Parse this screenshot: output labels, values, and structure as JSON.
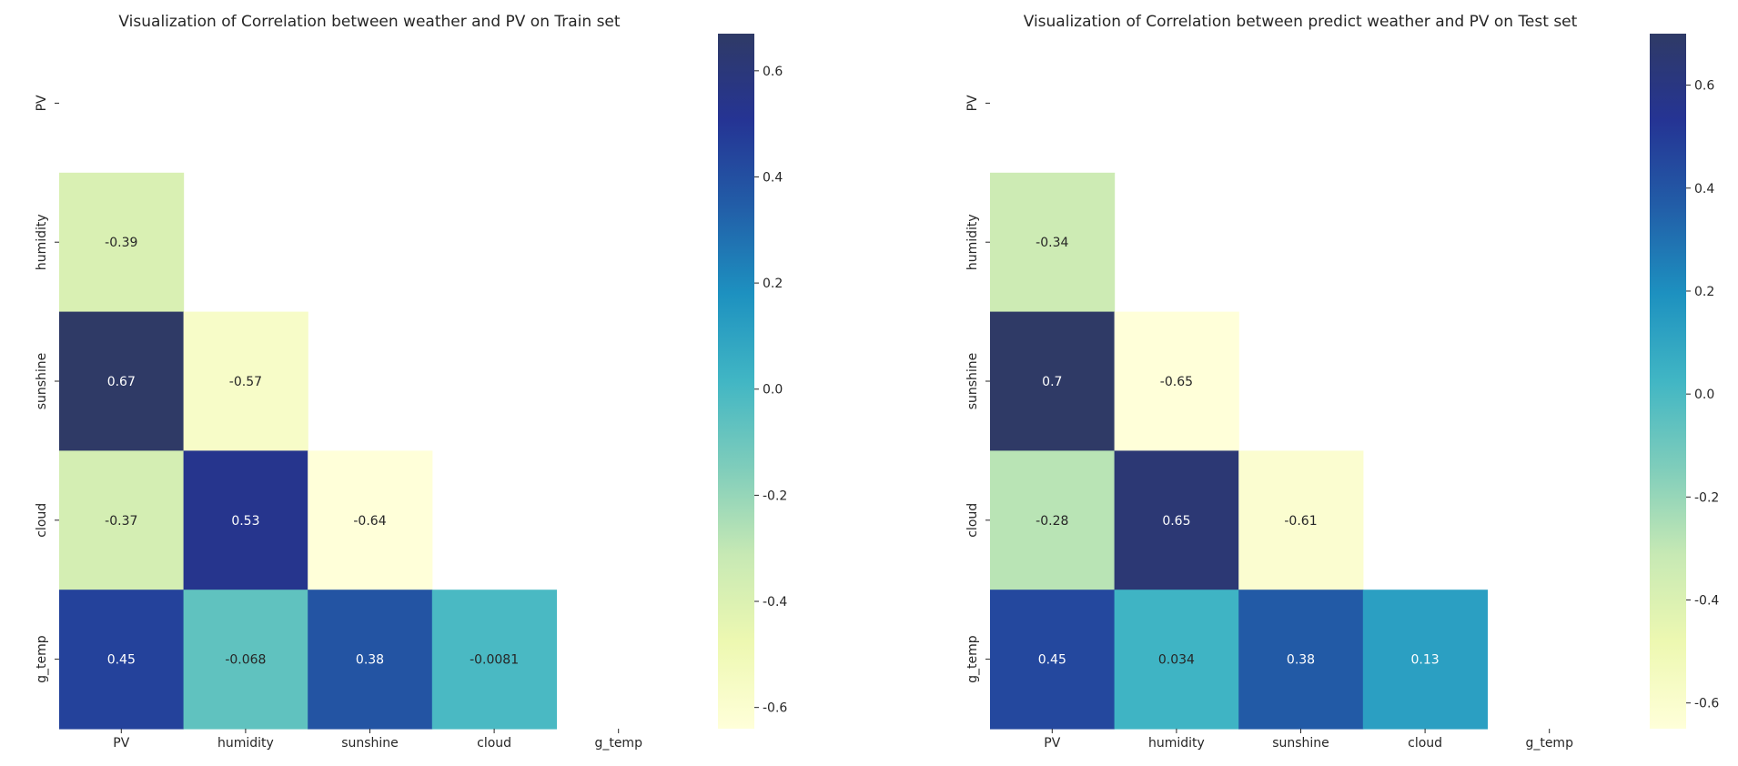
{
  "chart_data": [
    {
      "type": "heatmap",
      "title": "Visualization of Correlation between weather and PV on Train set",
      "xlabel": "",
      "ylabel": "",
      "categories": [
        "PV",
        "humidity",
        "sunshine",
        "cloud",
        "g_temp"
      ],
      "mask": "upper-triangle-and-diagonal",
      "values": [
        [
          null,
          null,
          null,
          null,
          null
        ],
        [
          -0.39,
          null,
          null,
          null,
          null
        ],
        [
          0.67,
          -0.57,
          null,
          null,
          null
        ],
        [
          -0.37,
          0.53,
          -0.64,
          null,
          null
        ],
        [
          0.45,
          -0.068,
          0.38,
          -0.0081,
          null
        ]
      ],
      "cell_labels": [
        [
          "",
          "",
          "",
          "",
          ""
        ],
        [
          "-0.39",
          "",
          "",
          "",
          ""
        ],
        [
          "0.67",
          "-0.57",
          "",
          "",
          ""
        ],
        [
          "-0.37",
          "0.53",
          "-0.64",
          "",
          ""
        ],
        [
          "0.45",
          "-0.068",
          "0.38",
          "-0.0081",
          ""
        ]
      ],
      "colorbar": {
        "colormap": "YlGnBu",
        "vmin": -0.64,
        "vmax": 0.67,
        "ticks": [
          0.6,
          0.4,
          0.2,
          0.0,
          -0.2,
          -0.4,
          -0.6
        ],
        "tick_labels": [
          "0.6",
          "0.4",
          "0.2",
          "0.0",
          "-0.2",
          "-0.4",
          "-0.6"
        ]
      }
    },
    {
      "type": "heatmap",
      "title": "Visualization of Correlation between predict weather and PV on Test set",
      "xlabel": "",
      "ylabel": "",
      "categories": [
        "PV",
        "humidity",
        "sunshine",
        "cloud",
        "g_temp"
      ],
      "mask": "upper-triangle-and-diagonal",
      "values": [
        [
          null,
          null,
          null,
          null,
          null
        ],
        [
          -0.34,
          null,
          null,
          null,
          null
        ],
        [
          0.7,
          -0.65,
          null,
          null,
          null
        ],
        [
          -0.28,
          0.65,
          -0.61,
          null,
          null
        ],
        [
          0.45,
          0.034,
          0.38,
          0.13,
          null
        ]
      ],
      "cell_labels": [
        [
          "",
          "",
          "",
          "",
          ""
        ],
        [
          "-0.34",
          "",
          "",
          "",
          ""
        ],
        [
          "0.7",
          "-0.65",
          "",
          "",
          ""
        ],
        [
          "-0.28",
          "0.65",
          "-0.61",
          "",
          ""
        ],
        [
          "0.45",
          "0.034",
          "0.38",
          "0.13",
          ""
        ]
      ],
      "colorbar": {
        "colormap": "YlGnBu",
        "vmin": -0.65,
        "vmax": 0.7,
        "ticks": [
          0.6,
          0.4,
          0.2,
          0.0,
          -0.2,
          -0.4,
          -0.6
        ],
        "tick_labels": [
          "0.6",
          "0.4",
          "0.2",
          "0.0",
          "-0.2",
          "-0.4",
          "-0.6"
        ]
      }
    }
  ]
}
